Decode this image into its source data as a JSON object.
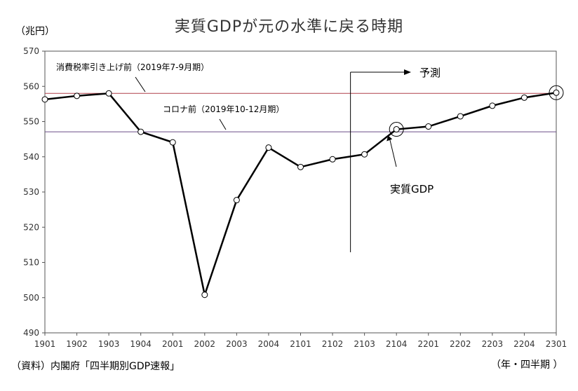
{
  "chart_data": {
    "type": "line",
    "title": "実質GDPが元の水準に戻る時期",
    "y_unit_label": "（兆円）",
    "x_unit_label": "（年・四半期 ）",
    "source": "（資料）内閣府「四半期別GDP速報」",
    "ylim": [
      490,
      570
    ],
    "yticks": [
      490,
      500,
      510,
      520,
      530,
      540,
      550,
      560,
      570
    ],
    "grid": false,
    "categories": [
      "1901",
      "1902",
      "1903",
      "1904",
      "2001",
      "2002",
      "2003",
      "2004",
      "2101",
      "2102",
      "2103",
      "2104",
      "2201",
      "2202",
      "2203",
      "2204",
      "2301"
    ],
    "series": [
      {
        "name": "実質GDP",
        "values": [
          556.3,
          557.3,
          558.0,
          547.1,
          544.1,
          500.8,
          527.7,
          542.6,
          537.1,
          539.3,
          540.7,
          547.8,
          548.6,
          551.5,
          554.5,
          556.8,
          558.2
        ],
        "color": "#000000"
      }
    ],
    "reference_lines": [
      {
        "label": "消費税率引き上げ前（2019年7-9月期）",
        "value": 558.0,
        "color": "#b0404a"
      },
      {
        "label": "コロナ前（2019年10-12月期）",
        "value": 547.1,
        "color": "#6a4d86"
      }
    ],
    "forecast": {
      "label": "予測",
      "start_category": "2103"
    },
    "annotations": {
      "series_label": "実質GDP",
      "highlight_categories": [
        "2104",
        "2301"
      ]
    }
  }
}
